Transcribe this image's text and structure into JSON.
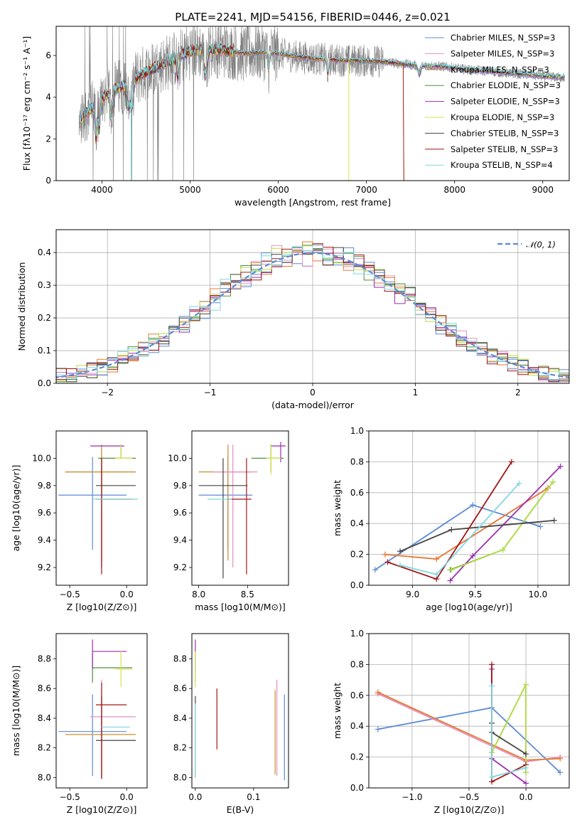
{
  "figure_title": "PLATE=2241, MJD=54156, FIBERID=0446, z=0.021",
  "colors": {
    "Chabrier MILES": "#5b8ad8",
    "Salpeter MILES": "#e58fc0",
    "Kroupa MILES": "#c98f2a",
    "Chabrier ELODIE": "#4f8f3a",
    "Salpeter ELODIE": "#9b2fae",
    "Kroupa ELODIE": "#d8e24a",
    "Chabrier STELIB": "#444444",
    "Salpeter STELIB": "#a31616",
    "Kroupa STELIB": "#7fd8e0",
    "data": "#808080",
    "normal": "#5b8ad8",
    "orange": "#e87a2f",
    "lime": "#b7e04a"
  },
  "chart_data": [
    {
      "id": "spectrum",
      "type": "line",
      "title": "PLATE=2241, MJD=54156, FIBERID=0446, z=0.021",
      "xlabel": "wavelength [Angstrom, rest frame]",
      "ylabel": "Flux [fλ10⁻¹⁷ erg cm⁻² s⁻¹ A⁻¹]",
      "xlim": [
        3480,
        9300
      ],
      "ylim": [
        0,
        7.4
      ],
      "xticks": [
        4000,
        5000,
        6000,
        7000,
        8000,
        9000
      ],
      "yticks": [
        0,
        2,
        4,
        6
      ],
      "legend_position": "top-right",
      "legend": [
        "Chabrier MILES, N_SSP=3",
        "Salpeter MILES, N_SSP=3",
        "Kroupa MILES, N_SSP=3",
        "Chabrier ELODIE, N_SSP=3",
        "Salpeter ELODIE, N_SSP=3",
        "Kroupa ELODIE, N_SSP=3",
        "Chabrier STELIB, N_SSP=3",
        "Salpeter STELIB, N_SSP=3",
        "Kroupa STELIB, N_SSP=4"
      ],
      "model_x": [
        3740,
        3800,
        3900,
        4000,
        4100,
        4300,
        4500,
        4700,
        4900,
        5000,
        5200,
        5400,
        5600,
        5800,
        6000,
        6200,
        6400,
        6600,
        6800,
        7000,
        7200,
        7400,
        7600,
        7800,
        8000,
        8200,
        8400,
        8600,
        8800,
        9000,
        9200
      ],
      "model_y": [
        2.7,
        3.2,
        3.5,
        4.0,
        4.3,
        4.7,
        5.2,
        5.6,
        6.0,
        6.2,
        6.3,
        6.25,
        6.1,
        6.15,
        6.1,
        5.95,
        5.85,
        5.8,
        5.75,
        5.75,
        5.7,
        5.6,
        5.5,
        5.5,
        5.4,
        5.3,
        5.25,
        5.15,
        5.1,
        5.0,
        4.95
      ]
    },
    {
      "id": "residuals",
      "type": "bar",
      "xlabel": "(data-model)/error",
      "ylabel": "Normed distribution",
      "xlim": [
        -2.5,
        2.5
      ],
      "ylim": [
        0,
        0.47
      ],
      "xticks": [
        -2,
        -1,
        0,
        1,
        2
      ],
      "yticks": [
        0.0,
        0.1,
        0.2,
        0.3,
        0.4
      ],
      "grid": true,
      "legend_position": "top-right",
      "legend": [
        "𝒩(0, 1)"
      ],
      "bin_width": 0.1
    },
    {
      "id": "age-vs-z",
      "type": "scatter",
      "xlabel": "Z [log10(Z/Z⊙)]",
      "ylabel": "age  [log10(age/yr)]",
      "xlim": [
        -0.62,
        0.18
      ],
      "ylim": [
        9.07,
        10.2
      ],
      "xticks": [
        -0.5,
        0.0
      ],
      "yticks": [
        9.2,
        9.4,
        9.6,
        9.8,
        10.0
      ],
      "points": [
        {
          "model": "Chabrier MILES",
          "x": -0.3,
          "y": 9.73,
          "xerr": [
            0.3,
            0.3
          ],
          "yerr": [
            0.4,
            0.28
          ]
        },
        {
          "model": "Salpeter MILES",
          "x": -0.22,
          "y": 9.9,
          "xerr": [
            0.32,
            0.3
          ],
          "yerr": [
            0.7,
            0.2
          ]
        },
        {
          "model": "Kroupa MILES",
          "x": -0.22,
          "y": 9.9,
          "xerr": [
            0.32,
            0.3
          ],
          "yerr": [
            0.65,
            0.2
          ]
        },
        {
          "model": "Chabrier ELODIE",
          "x": -0.05,
          "y": 10.0,
          "xerr": [
            0.2,
            0.13
          ],
          "yerr": [
            0.0,
            0.1
          ]
        },
        {
          "model": "Salpeter ELODIE",
          "x": -0.22,
          "y": 10.09,
          "xerr": [
            0.1,
            0.2
          ],
          "yerr": [
            0.0,
            0.0
          ]
        },
        {
          "model": "Kroupa ELODIE",
          "x": -0.05,
          "y": 10.0,
          "xerr": [
            0.05,
            0.1
          ],
          "yerr": [
            0.0,
            0.1
          ]
        },
        {
          "model": "Chabrier STELIB",
          "x": -0.22,
          "y": 9.8,
          "xerr": [
            0.05,
            0.3
          ],
          "yerr": [
            0.6,
            0.2
          ]
        },
        {
          "model": "Salpeter STELIB",
          "x": -0.22,
          "y": 9.7,
          "xerr": [
            0.05,
            0.27
          ],
          "yerr": [
            0.55,
            0.3
          ]
        },
        {
          "model": "Kroupa STELIB",
          "x": -0.3,
          "y": 9.7,
          "xerr": [
            0.0,
            0.4
          ],
          "yerr": [
            0.0,
            0.0
          ]
        }
      ]
    },
    {
      "id": "age-vs-mass",
      "type": "scatter",
      "xlabel": "mass [log10(M/M⊙)]",
      "ylabel": "",
      "xlim": [
        7.93,
        8.92
      ],
      "ylim": [
        9.07,
        10.2
      ],
      "xticks": [
        8.0,
        8.5
      ],
      "yticks": [
        9.2,
        9.4,
        9.6,
        9.8,
        10.0
      ],
      "points": [
        {
          "model": "Chabrier MILES",
          "x": 8.3,
          "y": 9.73,
          "xerr": [
            0.3,
            0.25
          ],
          "yerr": [
            0.4,
            0.28
          ]
        },
        {
          "model": "Kroupa MILES",
          "x": 8.3,
          "y": 9.9,
          "xerr": [
            0.3,
            0.25
          ],
          "yerr": [
            0.65,
            0.2
          ]
        },
        {
          "model": "Salpeter MILES",
          "x": 8.35,
          "y": 9.9,
          "xerr": [
            0.2,
            0.25
          ],
          "yerr": [
            0.7,
            0.2
          ]
        },
        {
          "model": "Chabrier ELODIE",
          "x": 8.74,
          "y": 10.0,
          "xerr": [
            0.2,
            0.13
          ],
          "yerr": [
            0.1,
            0.1
          ]
        },
        {
          "model": "Salpeter ELODIE",
          "x": 8.84,
          "y": 10.09,
          "xerr": [
            0.1,
            0.05
          ],
          "yerr": [
            0.12,
            0.03
          ]
        },
        {
          "model": "Kroupa ELODIE",
          "x": 8.74,
          "y": 10.0,
          "xerr": [
            0.05,
            0.1
          ],
          "yerr": [
            0.12,
            0.1
          ]
        },
        {
          "model": "Chabrier STELIB",
          "x": 8.25,
          "y": 9.8,
          "xerr": [
            0.25,
            0.25
          ],
          "yerr": [
            0.68,
            0.2
          ]
        },
        {
          "model": "Salpeter STELIB",
          "x": 8.49,
          "y": 9.7,
          "xerr": [
            0.2,
            0.05
          ],
          "yerr": [
            0.55,
            0.3
          ]
        },
        {
          "model": "Kroupa STELIB",
          "x": 8.34,
          "y": 9.7,
          "xerr": [
            0.25,
            0.0
          ],
          "yerr": [
            0.0,
            0.0
          ]
        }
      ]
    },
    {
      "id": "weight-vs-age",
      "type": "line",
      "xlabel": "age  [log10(age/yr)]",
      "ylabel": "mass weight",
      "xlim": [
        8.65,
        10.25
      ],
      "ylim": [
        0,
        1.0
      ],
      "xticks": [
        9.0,
        9.5,
        10.0
      ],
      "yticks": [
        0.0,
        0.2,
        0.4,
        0.6,
        0.8,
        1.0
      ],
      "grid": true,
      "series": [
        {
          "model": "Chabrier MILES",
          "x": [
            8.7,
            9.48,
            10.02
          ],
          "y": [
            0.1,
            0.52,
            0.38
          ]
        },
        {
          "model": "Salpeter MILES",
          "x": [
            8.78,
            9.19,
            10.08
          ],
          "y": [
            0.2,
            0.17,
            0.63
          ]
        },
        {
          "model": "Kroupa MILES",
          "x": [
            8.78,
            9.19,
            10.08
          ],
          "y": [
            0.2,
            0.17,
            0.63
          ]
        },
        {
          "model": "Chabrier ELODIE",
          "x": [
            9.3,
            9.72,
            10.12
          ],
          "y": [
            0.1,
            0.23,
            0.67
          ]
        },
        {
          "model": "Salpeter ELODIE",
          "x": [
            9.3,
            9.48,
            10.18
          ],
          "y": [
            0.03,
            0.19,
            0.77
          ]
        },
        {
          "model": "Kroupa ELODIE",
          "x": [
            9.31,
            9.72,
            10.12
          ],
          "y": [
            0.1,
            0.23,
            0.67
          ]
        },
        {
          "model": "Chabrier STELIB",
          "x": [
            8.9,
            9.31,
            10.13
          ],
          "y": [
            0.22,
            0.36,
            0.42
          ]
        },
        {
          "model": "Salpeter STELIB",
          "x": [
            8.8,
            9.19,
            9.79
          ],
          "y": [
            0.15,
            0.04,
            0.8
          ]
        },
        {
          "model": "Kroupa STELIB",
          "x": [
            8.9,
            9.19,
            9.85
          ],
          "y": [
            0.13,
            0.07,
            0.66
          ]
        }
      ]
    },
    {
      "id": "mass-vs-z",
      "type": "scatter",
      "xlabel": "Z [log10(Z/Z⊙)]",
      "ylabel": "mass [log10(M/M⊙)]",
      "xlim": [
        -0.62,
        0.18
      ],
      "ylim": [
        7.93,
        8.97
      ],
      "xticks": [
        -0.5,
        0.0
      ],
      "yticks": [
        8.0,
        8.2,
        8.4,
        8.6,
        8.8
      ],
      "points": [
        {
          "model": "Chabrier MILES",
          "x": -0.3,
          "y": 8.31,
          "xerr": [
            0.3,
            0.3
          ],
          "yerr": [
            0.3,
            0.25
          ]
        },
        {
          "model": "Salpeter MILES",
          "x": -0.22,
          "y": 8.41,
          "xerr": [
            0.1,
            0.3
          ],
          "yerr": [
            0.4,
            0.25
          ]
        },
        {
          "model": "Kroupa MILES",
          "x": -0.22,
          "y": 8.29,
          "xerr": [
            0.32,
            0.3
          ],
          "yerr": [
            0.3,
            0.25
          ]
        },
        {
          "model": "Chabrier ELODIE",
          "x": -0.3,
          "y": 8.74,
          "xerr": [
            0.0,
            0.35
          ],
          "yerr": [
            0.1,
            0.1
          ]
        },
        {
          "model": "Salpeter ELODIE",
          "x": -0.3,
          "y": 8.85,
          "xerr": [
            0.0,
            0.3
          ],
          "yerr": [
            0.12,
            0.08
          ]
        },
        {
          "model": "Kroupa ELODIE",
          "x": -0.05,
          "y": 8.73,
          "xerr": [
            0.05,
            0.1
          ],
          "yerr": [
            0.12,
            0.12
          ]
        },
        {
          "model": "Chabrier STELIB",
          "x": -0.22,
          "y": 8.25,
          "xerr": [
            0.05,
            0.3
          ],
          "yerr": [
            0.25,
            0.3
          ]
        },
        {
          "model": "Salpeter STELIB",
          "x": -0.22,
          "y": 8.49,
          "xerr": [
            0.05,
            0.22
          ],
          "yerr": [
            0.5,
            0.15
          ]
        },
        {
          "model": "Kroupa STELIB",
          "x": -0.22,
          "y": 8.34,
          "xerr": [
            0.0,
            0.25
          ],
          "yerr": [
            0.0,
            0.0
          ]
        }
      ]
    },
    {
      "id": "mass-vs-ebv",
      "type": "scatter",
      "xlabel": "E(B-V)",
      "ylabel": "",
      "xlim": [
        -0.006,
        0.16
      ],
      "ylim": [
        7.93,
        8.97
      ],
      "xticks": [
        0.0,
        0.1
      ],
      "yticks": [
        8.0,
        8.2,
        8.4,
        8.6,
        8.8
      ],
      "points": [
        {
          "model": "Chabrier MILES",
          "x": 0.153,
          "y": 8.28,
          "yerr": [
            0.3,
            0.28
          ]
        },
        {
          "model": "Salpeter MILES",
          "x": 0.14,
          "y": 8.41,
          "yerr": [
            0.4,
            0.25
          ]
        },
        {
          "model": "Kroupa MILES",
          "x": 0.137,
          "y": 8.29,
          "yerr": [
            0.27,
            0.3
          ]
        },
        {
          "model": "Chabrier ELODIE",
          "x": 0.0,
          "y": 8.74,
          "yerr": [
            0.1,
            0.1
          ]
        },
        {
          "model": "Salpeter ELODIE",
          "x": 0.0,
          "y": 8.85,
          "yerr": [
            0.12,
            0.08
          ]
        },
        {
          "model": "Kroupa ELODIE",
          "x": 0.0,
          "y": 8.73,
          "yerr": [
            0.12,
            0.12
          ]
        },
        {
          "model": "Chabrier STELIB",
          "x": 0.0,
          "y": 8.35,
          "yerr": [
            0.35,
            0.2
          ]
        },
        {
          "model": "Salpeter STELIB",
          "x": 0.037,
          "y": 8.4,
          "yerr": [
            0.21,
            0.2
          ]
        },
        {
          "model": "Kroupa STELIB",
          "x": 0.0,
          "y": 8.3,
          "yerr": [
            0.3,
            0.2
          ]
        }
      ]
    },
    {
      "id": "weight-vs-z",
      "type": "line",
      "xlabel": "Z [log10(Z/Z⊙)]",
      "ylabel": "mass weight",
      "xlim": [
        -1.38,
        0.38
      ],
      "ylim": [
        0,
        1.0
      ],
      "xticks": [
        -1.0,
        -0.5,
        0.0
      ],
      "yticks": [
        0.0,
        0.2,
        0.4,
        0.6,
        0.8,
        1.0
      ],
      "grid": true,
      "series": [
        {
          "model": "Chabrier MILES",
          "x": [
            -1.3,
            -0.3,
            0.3
          ],
          "y": [
            0.38,
            0.52,
            0.1
          ]
        },
        {
          "model": "Salpeter MILES",
          "x": [
            -1.3,
            0.0,
            0.3
          ],
          "y": [
            0.61,
            0.17,
            0.2
          ]
        },
        {
          "model": "Kroupa MILES",
          "x": [
            -1.3,
            0.0,
            0.3
          ],
          "y": [
            0.62,
            0.18,
            0.19
          ]
        },
        {
          "model": "Chabrier ELODIE",
          "x": [
            -0.3,
            0.0,
            0.0
          ],
          "y": [
            0.23,
            0.67,
            0.1
          ]
        },
        {
          "model": "Salpeter ELODIE",
          "x": [
            -0.3,
            -0.3,
            0.0
          ],
          "y": [
            0.77,
            0.19,
            0.03
          ]
        },
        {
          "model": "Kroupa ELODIE",
          "x": [
            -0.3,
            0.0,
            0.0
          ],
          "y": [
            0.23,
            0.67,
            0.1
          ]
        },
        {
          "model": "Chabrier STELIB",
          "x": [
            -0.3,
            -0.3,
            0.0
          ],
          "y": [
            0.42,
            0.36,
            0.22
          ]
        },
        {
          "model": "Salpeter STELIB",
          "x": [
            -0.3,
            -0.3,
            0.0
          ],
          "y": [
            0.8,
            0.04,
            0.15
          ]
        },
        {
          "model": "Kroupa STELIB",
          "x": [
            -0.3,
            -0.3,
            0.0
          ],
          "y": [
            0.66,
            0.07,
            0.13
          ]
        }
      ]
    }
  ]
}
